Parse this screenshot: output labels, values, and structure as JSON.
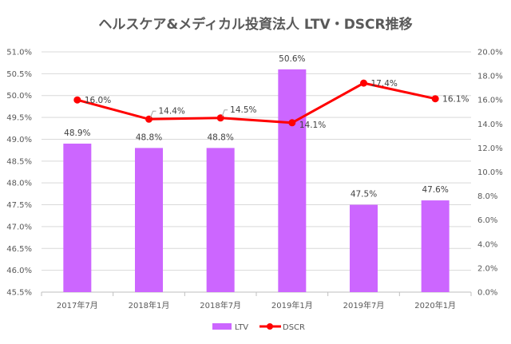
{
  "chart_data": {
    "type": "bar+line",
    "title": "ヘルスケア&メディカル投資法人 LTV・DSCR推移",
    "categories": [
      "2017年7月",
      "2018年1月",
      "2018年7月",
      "2019年1月",
      "2019年7月",
      "2020年1月"
    ],
    "series": [
      {
        "name": "LTV",
        "type": "bar",
        "axis": "left",
        "values": [
          48.9,
          48.8,
          48.8,
          50.6,
          47.5,
          47.6
        ],
        "labels": [
          "48.9%",
          "48.8%",
          "48.8%",
          "50.6%",
          "47.5%",
          "47.6%"
        ],
        "color": "#CC66FF"
      },
      {
        "name": "DSCR",
        "type": "line",
        "axis": "right",
        "values": [
          16.0,
          14.4,
          14.5,
          14.1,
          17.4,
          16.1
        ],
        "labels": [
          "16.0%",
          "14.4%",
          "14.5%",
          "14.1%",
          "17.4%",
          "16.1%"
        ],
        "color": "#FF0000"
      }
    ],
    "y_left": {
      "range": [
        45.5,
        51.0
      ],
      "step": 0.5,
      "ticks": [
        "45.5%",
        "46.0%",
        "46.5%",
        "47.0%",
        "47.5%",
        "48.0%",
        "48.5%",
        "49.0%",
        "49.5%",
        "50.0%",
        "50.5%",
        "51.0%"
      ]
    },
    "y_right": {
      "range": [
        0,
        20
      ],
      "step": 2,
      "ticks": [
        "0.0%",
        "2.0%",
        "4.0%",
        "6.0%",
        "8.0%",
        "10.0%",
        "12.0%",
        "14.0%",
        "16.0%",
        "18.0%",
        "20.0%"
      ]
    },
    "grid": true,
    "legend": "bottom"
  }
}
